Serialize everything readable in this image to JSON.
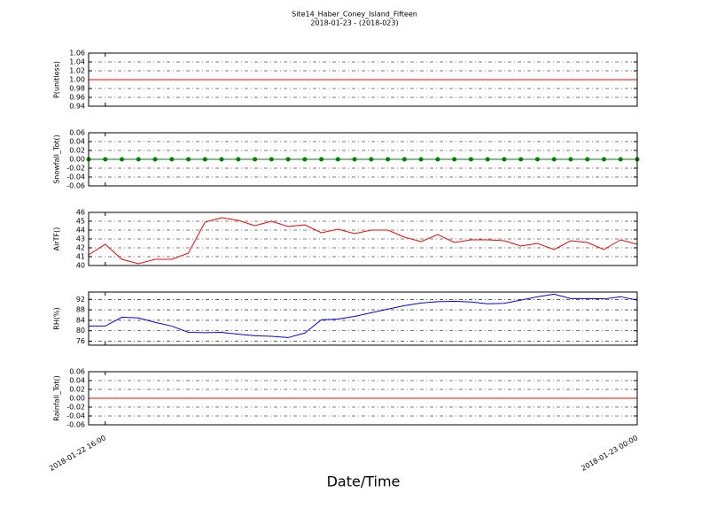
{
  "chart_data": [
    {
      "type": "line",
      "title": "Site14_Haber_Coney_Island_Fifteen",
      "subtitle": "2018-01-23 - (2018-023)",
      "ylabel": "P(unitless)",
      "x": [
        "2018-01-22 15:45",
        "2018-01-22 16:00",
        "2018-01-22 16:15",
        "2018-01-22 16:30",
        "2018-01-22 16:45",
        "2018-01-22 17:00",
        "2018-01-22 17:15",
        "2018-01-22 17:30",
        "2018-01-22 17:45",
        "2018-01-22 18:00",
        "2018-01-22 18:15",
        "2018-01-22 18:30",
        "2018-01-22 18:45",
        "2018-01-22 19:00",
        "2018-01-22 19:15",
        "2018-01-22 19:30",
        "2018-01-22 19:45",
        "2018-01-22 20:00",
        "2018-01-22 20:15",
        "2018-01-22 20:30",
        "2018-01-22 20:45",
        "2018-01-22 21:00",
        "2018-01-22 21:15",
        "2018-01-22 21:30",
        "2018-01-22 21:45",
        "2018-01-22 22:00",
        "2018-01-22 22:15",
        "2018-01-22 22:30",
        "2018-01-22 22:45",
        "2018-01-22 23:00",
        "2018-01-22 23:15",
        "2018-01-22 23:30",
        "2018-01-22 23:45",
        "2018-01-23 00:00"
      ],
      "values": [
        1,
        1,
        1,
        1,
        1,
        1,
        1,
        1,
        1,
        1,
        1,
        1,
        1,
        1,
        1,
        1,
        1,
        1,
        1,
        1,
        1,
        1,
        1,
        1,
        1,
        1,
        1,
        1,
        1,
        1,
        1,
        1,
        1,
        1
      ],
      "color": "#ff0000",
      "marker": false,
      "xlim": [
        "2018-01-22 15:45",
        "2018-01-23 00:00"
      ],
      "ylim": [
        0.94,
        1.06
      ],
      "yticks": [
        0.94,
        0.96,
        0.98,
        {
          "value": 1,
          "label": "1.00"
        },
        1.02,
        1.04,
        1.06
      ],
      "grid": true
    },
    {
      "type": "line",
      "ylabel": "Snowfall_Tot()",
      "x": [
        "2018-01-22 15:45",
        "2018-01-22 16:00",
        "2018-01-22 16:15",
        "2018-01-22 16:30",
        "2018-01-22 16:45",
        "2018-01-22 17:00",
        "2018-01-22 17:15",
        "2018-01-22 17:30",
        "2018-01-22 17:45",
        "2018-01-22 18:00",
        "2018-01-22 18:15",
        "2018-01-22 18:30",
        "2018-01-22 18:45",
        "2018-01-22 19:00",
        "2018-01-22 19:15",
        "2018-01-22 19:30",
        "2018-01-22 19:45",
        "2018-01-22 20:00",
        "2018-01-22 20:15",
        "2018-01-22 20:30",
        "2018-01-22 20:45",
        "2018-01-22 21:00",
        "2018-01-22 21:15",
        "2018-01-22 21:30",
        "2018-01-22 21:45",
        "2018-01-22 22:00",
        "2018-01-22 22:15",
        "2018-01-22 22:30",
        "2018-01-22 22:45",
        "2018-01-22 23:00",
        "2018-01-22 23:15",
        "2018-01-22 23:30",
        "2018-01-22 23:45",
        "2018-01-23 00:00"
      ],
      "values": [
        0,
        0,
        0,
        0,
        0,
        0,
        0,
        0,
        0,
        0,
        0,
        0,
        0,
        0,
        0,
        0,
        0,
        0,
        0,
        0,
        0,
        0,
        0,
        0,
        0,
        0,
        0,
        0,
        0,
        0,
        0,
        0,
        0,
        0
      ],
      "color": "#008000",
      "marker": true,
      "xlim": [
        "2018-01-22 15:45",
        "2018-01-23 00:00"
      ],
      "ylim": [
        -0.06,
        0.06
      ],
      "yticks": [
        -0.06,
        -0.04,
        -0.02,
        {
          "value": 0,
          "label": "0.00"
        },
        0.02,
        0.04,
        0.06
      ],
      "grid": true
    },
    {
      "type": "line",
      "ylabel": "AirTF()",
      "x": [
        "2018-01-22 15:45",
        "2018-01-22 16:00",
        "2018-01-22 16:15",
        "2018-01-22 16:30",
        "2018-01-22 16:45",
        "2018-01-22 17:00",
        "2018-01-22 17:15",
        "2018-01-22 17:30",
        "2018-01-22 17:45",
        "2018-01-22 18:00",
        "2018-01-22 18:15",
        "2018-01-22 18:30",
        "2018-01-22 18:45",
        "2018-01-22 19:00",
        "2018-01-22 19:15",
        "2018-01-22 19:30",
        "2018-01-22 19:45",
        "2018-01-22 20:00",
        "2018-01-22 20:15",
        "2018-01-22 20:30",
        "2018-01-22 20:45",
        "2018-01-22 21:00",
        "2018-01-22 21:15",
        "2018-01-22 21:30",
        "2018-01-22 21:45",
        "2018-01-22 22:00",
        "2018-01-22 22:15",
        "2018-01-22 22:30",
        "2018-01-22 22:45",
        "2018-01-22 23:00",
        "2018-01-22 23:15",
        "2018-01-22 23:30",
        "2018-01-22 23:45",
        "2018-01-23 00:00"
      ],
      "values": [
        41.2,
        42.4,
        40.7,
        40.2,
        40.7,
        40.7,
        41.4,
        44.9,
        45.4,
        45.1,
        44.5,
        45.0,
        44.4,
        44.6,
        43.7,
        44.1,
        43.6,
        44.0,
        44.0,
        43.2,
        42.7,
        43.5,
        42.6,
        42.9,
        42.9,
        42.8,
        42.2,
        42.5,
        41.8,
        42.8,
        42.6,
        41.8,
        42.9,
        42.4
      ],
      "color": "#ff0000",
      "marker": false,
      "xlim": [
        "2018-01-22 15:45",
        "2018-01-23 00:00"
      ],
      "ylim": [
        40,
        46
      ],
      "yticks": [
        40,
        41,
        42,
        43,
        44,
        45,
        46
      ],
      "grid": true
    },
    {
      "type": "line",
      "ylabel": "RH(%)",
      "x": [
        "2018-01-22 15:45",
        "2018-01-22 16:00",
        "2018-01-22 16:15",
        "2018-01-22 16:30",
        "2018-01-22 16:45",
        "2018-01-22 17:00",
        "2018-01-22 17:15",
        "2018-01-22 17:30",
        "2018-01-22 17:45",
        "2018-01-22 18:00",
        "2018-01-22 18:15",
        "2018-01-22 18:30",
        "2018-01-22 18:45",
        "2018-01-22 19:00",
        "2018-01-22 19:15",
        "2018-01-22 19:30",
        "2018-01-22 19:45",
        "2018-01-22 20:00",
        "2018-01-22 20:15",
        "2018-01-22 20:30",
        "2018-01-22 20:45",
        "2018-01-22 21:00",
        "2018-01-22 21:15",
        "2018-01-22 21:30",
        "2018-01-22 21:45",
        "2018-01-22 22:00",
        "2018-01-22 22:15",
        "2018-01-22 22:30",
        "2018-01-22 22:45",
        "2018-01-22 23:00",
        "2018-01-22 23:15",
        "2018-01-22 23:30",
        "2018-01-22 23:45",
        "2018-01-23 00:00"
      ],
      "values": [
        81.8,
        81.8,
        85.2,
        84.9,
        83.2,
        81.8,
        79.4,
        79.3,
        79.4,
        78.7,
        78.1,
        77.9,
        77.4,
        79.1,
        84.2,
        84.5,
        85.5,
        86.9,
        88.3,
        89.6,
        90.6,
        91.1,
        91.3,
        91.0,
        90.3,
        90.5,
        91.7,
        93.0,
        94.0,
        92.3,
        92.3,
        92.2,
        93.0,
        91.7
      ],
      "color": "#0000ff",
      "marker": false,
      "xlim": [
        "2018-01-22 15:45",
        "2018-01-23 00:00"
      ],
      "ylim": [
        74.5,
        94.8
      ],
      "yticks": [
        76,
        80,
        84,
        88,
        92
      ],
      "grid": true
    },
    {
      "type": "line",
      "ylabel": "Rainfall_Tot()",
      "xlabel": "Date/Time",
      "x": [
        "2018-01-22 15:45",
        "2018-01-22 16:00",
        "2018-01-22 16:15",
        "2018-01-22 16:30",
        "2018-01-22 16:45",
        "2018-01-22 17:00",
        "2018-01-22 17:15",
        "2018-01-22 17:30",
        "2018-01-22 17:45",
        "2018-01-22 18:00",
        "2018-01-22 18:15",
        "2018-01-22 18:30",
        "2018-01-22 18:45",
        "2018-01-22 19:00",
        "2018-01-22 19:15",
        "2018-01-22 19:30",
        "2018-01-22 19:45",
        "2018-01-22 20:00",
        "2018-01-22 20:15",
        "2018-01-22 20:30",
        "2018-01-22 20:45",
        "2018-01-22 21:00",
        "2018-01-22 21:15",
        "2018-01-22 21:30",
        "2018-01-22 21:45",
        "2018-01-22 22:00",
        "2018-01-22 22:15",
        "2018-01-22 22:30",
        "2018-01-22 22:45",
        "2018-01-22 23:00",
        "2018-01-22 23:15",
        "2018-01-22 23:30",
        "2018-01-22 23:45",
        "2018-01-23 00:00"
      ],
      "values": [
        0,
        0,
        0,
        0,
        0,
        0,
        0,
        0,
        0,
        0,
        0,
        0,
        0,
        0,
        0,
        0,
        0,
        0,
        0,
        0,
        0,
        0,
        0,
        0,
        0,
        0,
        0,
        0,
        0,
        0,
        0,
        0,
        0,
        0
      ],
      "color": "#ff0000",
      "marker": false,
      "xlim": [
        "2018-01-22 15:45",
        "2018-01-23 00:00"
      ],
      "xticks": [
        "2018-01-22 16:00",
        "2018-01-23 00:00"
      ],
      "ylim": [
        -0.06,
        0.06
      ],
      "yticks": [
        -0.06,
        -0.04,
        -0.02,
        {
          "value": 0,
          "label": "0.00"
        },
        0.02,
        0.04,
        0.06
      ],
      "grid": true
    }
  ]
}
